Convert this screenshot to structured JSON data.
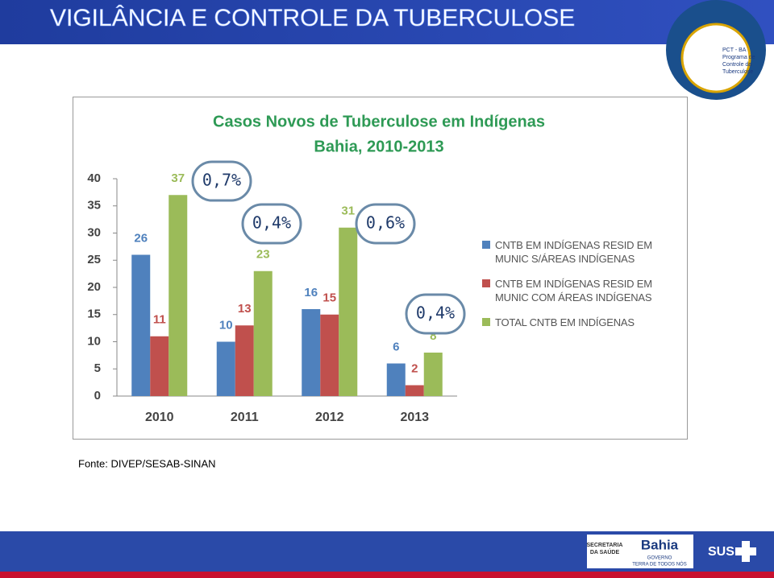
{
  "header": {
    "title": "VIGILÂNCIA E CONTROLE DA TUBERCULOSE"
  },
  "chart_data": {
    "type": "bar",
    "title": "Casos Novos de Tuberculose em Indígenas",
    "subtitle": "Bahia, 2010-2013",
    "categories": [
      "2010",
      "2011",
      "2012",
      "2013"
    ],
    "series": [
      {
        "name": "CNTB EM INDÍGENAS RESID EM MUNIC S/ÁREAS INDÍGENAS",
        "color": "#4f81bd",
        "values": [
          26,
          10,
          16,
          6
        ]
      },
      {
        "name": "CNTB EM INDÍGENAS RESID EM MUNIC COM ÁREAS INDÍGENAS",
        "color": "#c0504d",
        "values": [
          11,
          13,
          15,
          2
        ]
      },
      {
        "name": "TOTAL CNTB EM INDÍGENAS",
        "color": "#9bbb59",
        "values": [
          37,
          23,
          31,
          8
        ]
      }
    ],
    "ylim": [
      0,
      40
    ],
    "yticks": [
      0,
      5,
      10,
      15,
      20,
      25,
      30,
      35,
      40
    ],
    "grid": false,
    "legend": "right",
    "data_labels": true,
    "annotations": [
      "0,7%",
      "0,4%",
      "0,6%",
      "0,4%"
    ]
  },
  "source": "Fonte: DIVEP/SESAB-SINAN",
  "logos": {
    "pct": [
      "PCT - BA",
      "Programa de",
      "Controle da",
      "Tuberculose"
    ],
    "sesab": [
      "SECRETARIA",
      "DA SAÚDE"
    ],
    "bahia": "Bahia",
    "governo": "GOVERNO",
    "motto": "TERRA DE TODOS NÓS",
    "sus": "SUS"
  }
}
